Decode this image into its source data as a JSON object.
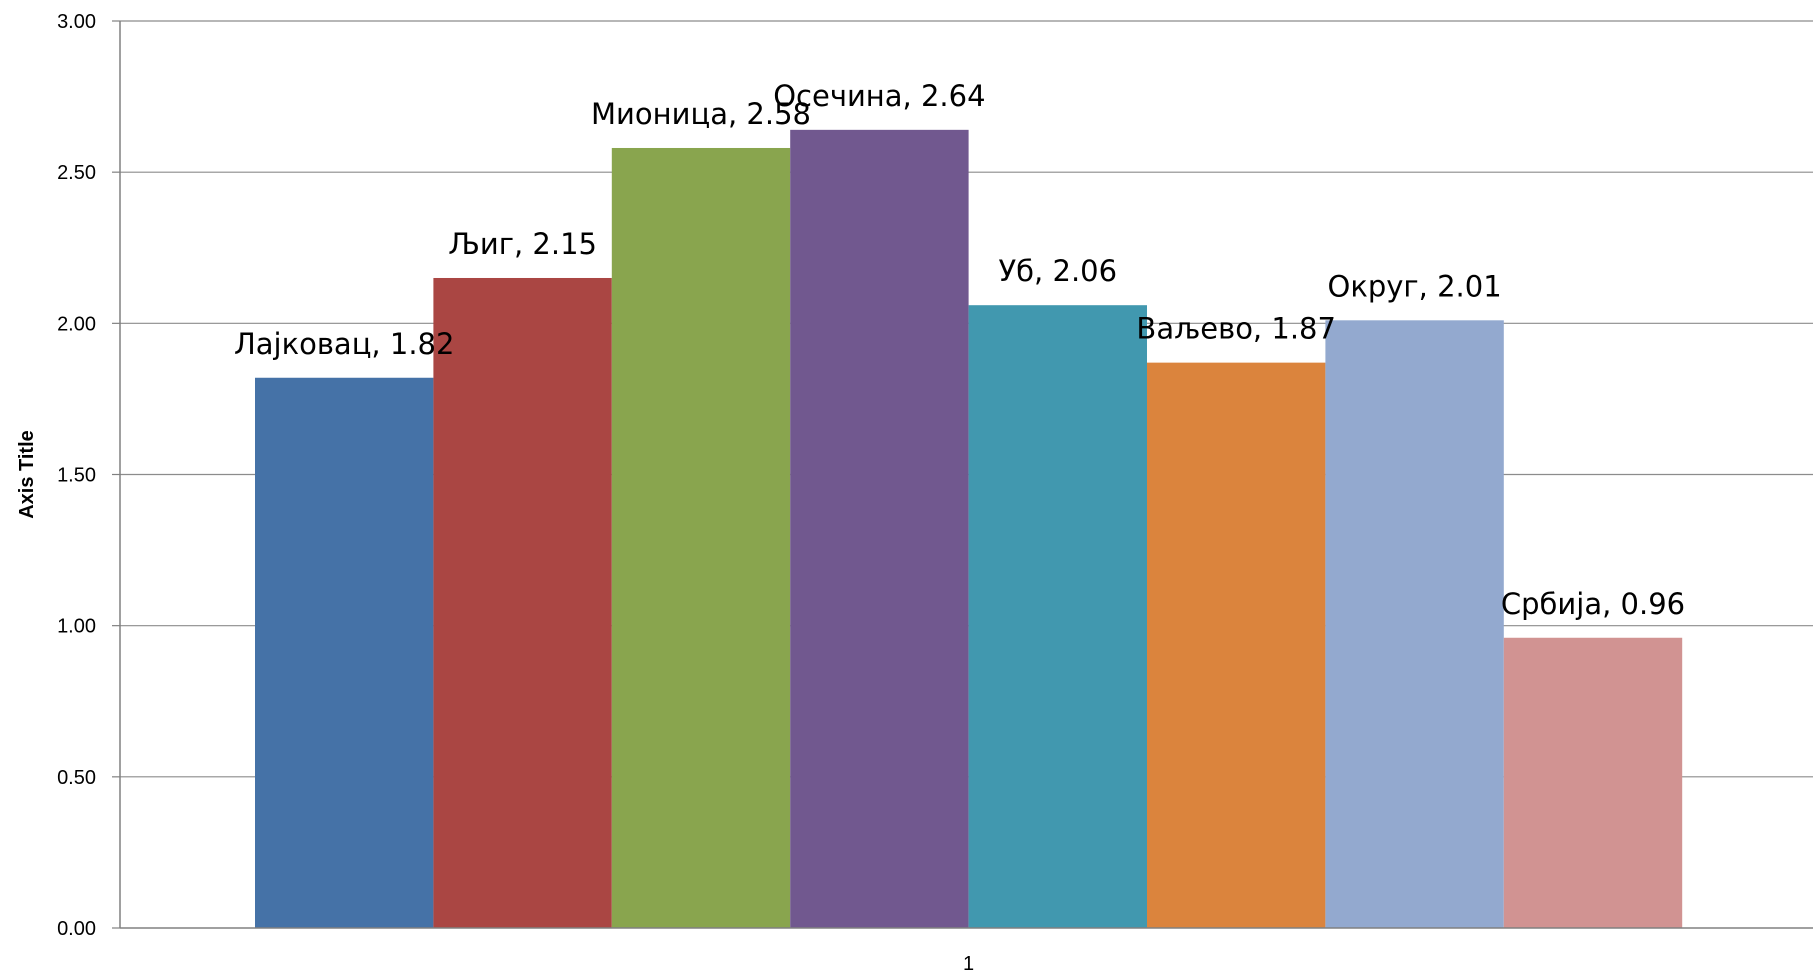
{
  "chart_data": {
    "type": "bar",
    "title": "",
    "xlabel": "",
    "ylabel": "Axis Title",
    "categories": [
      "1"
    ],
    "ylim": [
      0,
      3
    ],
    "yticks": [
      "0.00",
      "0.50",
      "1.00",
      "1.50",
      "2.00",
      "2.50",
      "3.00"
    ],
    "grid": true,
    "legend": "none",
    "series": [
      {
        "name": "Лајковац",
        "values": [
          1.82
        ],
        "color": "#4572A7",
        "label": "Лајковац, 1.82"
      },
      {
        "name": "Љиг",
        "values": [
          2.15
        ],
        "color": "#AA4643",
        "label": "Љиг, 2.15"
      },
      {
        "name": "Мионица",
        "values": [
          2.58
        ],
        "color": "#89A54E",
        "label": "Мионица, 2.58"
      },
      {
        "name": "Осечина",
        "values": [
          2.64
        ],
        "color": "#71588F",
        "label": "Осечина, 2.64"
      },
      {
        "name": "Уб",
        "values": [
          2.06
        ],
        "color": "#4198AF",
        "label": "Уб, 2.06"
      },
      {
        "name": "Ваљево",
        "values": [
          1.87
        ],
        "color": "#DB843D",
        "label": "Ваљево, 1.87"
      },
      {
        "name": "Округ",
        "values": [
          2.01
        ],
        "color": "#93A9CF",
        "label": "Округ, 2.01"
      },
      {
        "name": "Србија",
        "values": [
          0.96
        ],
        "color": "#D19392",
        "label": "Србија, 0.96"
      }
    ]
  }
}
